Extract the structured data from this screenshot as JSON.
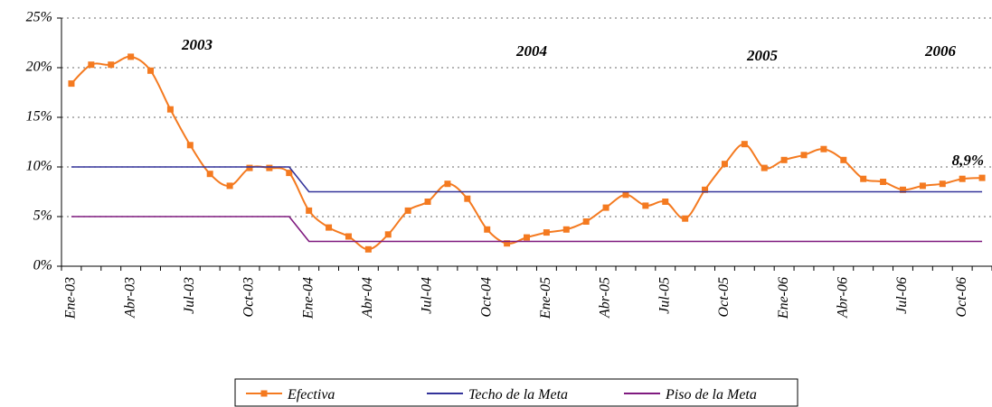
{
  "chart_data": {
    "type": "line",
    "categories": [
      "Ene-03",
      null,
      null,
      "Abr-03",
      null,
      null,
      "Jul-03",
      null,
      null,
      "Oct-03",
      null,
      null,
      "Ene-04",
      null,
      null,
      "Abr-04",
      null,
      null,
      "Jul-04",
      null,
      null,
      "Oct-04",
      null,
      null,
      "Ene-05",
      null,
      null,
      "Abr-05",
      null,
      null,
      "Jul-05",
      null,
      null,
      "Oct-05",
      null,
      null,
      "Ene-06",
      null,
      null,
      "Abr-06",
      null,
      null,
      "Jul-06",
      null,
      null,
      "Oct-06",
      null
    ],
    "series": [
      {
        "name": "Efectiva",
        "color": "#f47a20",
        "marker": true,
        "values": [
          18.4,
          20.3,
          20.3,
          21.1,
          19.7,
          15.8,
          12.2,
          9.3,
          8.1,
          9.9,
          9.9,
          9.4,
          5.6,
          3.9,
          3.0,
          1.7,
          3.2,
          5.6,
          6.5,
          8.3,
          6.8,
          3.7,
          2.3,
          2.9,
          3.4,
          3.7,
          4.5,
          5.9,
          7.2,
          6.1,
          6.5,
          4.8,
          7.7,
          10.3,
          12.3,
          9.9,
          10.7,
          11.2,
          11.8,
          10.7,
          8.8,
          8.5,
          7.7,
          8.1,
          8.3,
          8.8,
          8.9
        ],
        "value_labels": [
          null,
          null,
          null,
          null,
          null,
          null,
          null,
          null,
          null,
          null,
          null,
          null,
          null,
          null,
          null,
          null,
          null,
          null,
          null,
          null,
          null,
          null,
          null,
          null,
          null,
          null,
          null,
          null,
          null,
          null,
          null,
          null,
          null,
          null,
          null,
          null,
          null,
          null,
          null,
          null,
          null,
          null,
          null,
          null,
          null,
          null,
          "8,9%"
        ]
      },
      {
        "name": "Techo de la Meta",
        "color": "#33339a",
        "marker": false,
        "values": [
          10,
          10,
          10,
          10,
          10,
          10,
          10,
          10,
          10,
          10,
          10,
          10,
          7.5,
          7.5,
          7.5,
          7.5,
          7.5,
          7.5,
          7.5,
          7.5,
          7.5,
          7.5,
          7.5,
          7.5,
          7.5,
          7.5,
          7.5,
          7.5,
          7.5,
          7.5,
          7.5,
          7.5,
          7.5,
          7.5,
          7.5,
          7.5,
          7.5,
          7.5,
          7.5,
          7.5,
          7.5,
          7.5,
          7.5,
          7.5,
          7.5,
          7.5,
          7.5
        ]
      },
      {
        "name": "Piso de la Meta",
        "color": "#7f1a7f",
        "marker": false,
        "values": [
          5,
          5,
          5,
          5,
          5,
          5,
          5,
          5,
          5,
          5,
          5,
          5,
          2.5,
          2.5,
          2.5,
          2.5,
          2.5,
          2.5,
          2.5,
          2.5,
          2.5,
          2.5,
          2.5,
          2.5,
          2.5,
          2.5,
          2.5,
          2.5,
          2.5,
          2.5,
          2.5,
          2.5,
          2.5,
          2.5,
          2.5,
          2.5,
          2.5,
          2.5,
          2.5,
          2.5,
          2.5,
          2.5,
          2.5,
          2.5,
          2.5,
          2.5,
          2.5
        ]
      }
    ],
    "ylim": [
      0,
      25
    ],
    "yticks": [
      {
        "value": 0,
        "label": "0%"
      },
      {
        "value": 5,
        "label": "5%"
      },
      {
        "value": 10,
        "label": "10%"
      },
      {
        "value": 15,
        "label": "15%"
      },
      {
        "value": 20,
        "label": "20%"
      },
      {
        "value": 25,
        "label": "25%"
      }
    ],
    "grid": true,
    "legend": "bottom",
    "annotations": [
      "2003",
      "2004",
      "2005",
      "2006"
    ]
  }
}
